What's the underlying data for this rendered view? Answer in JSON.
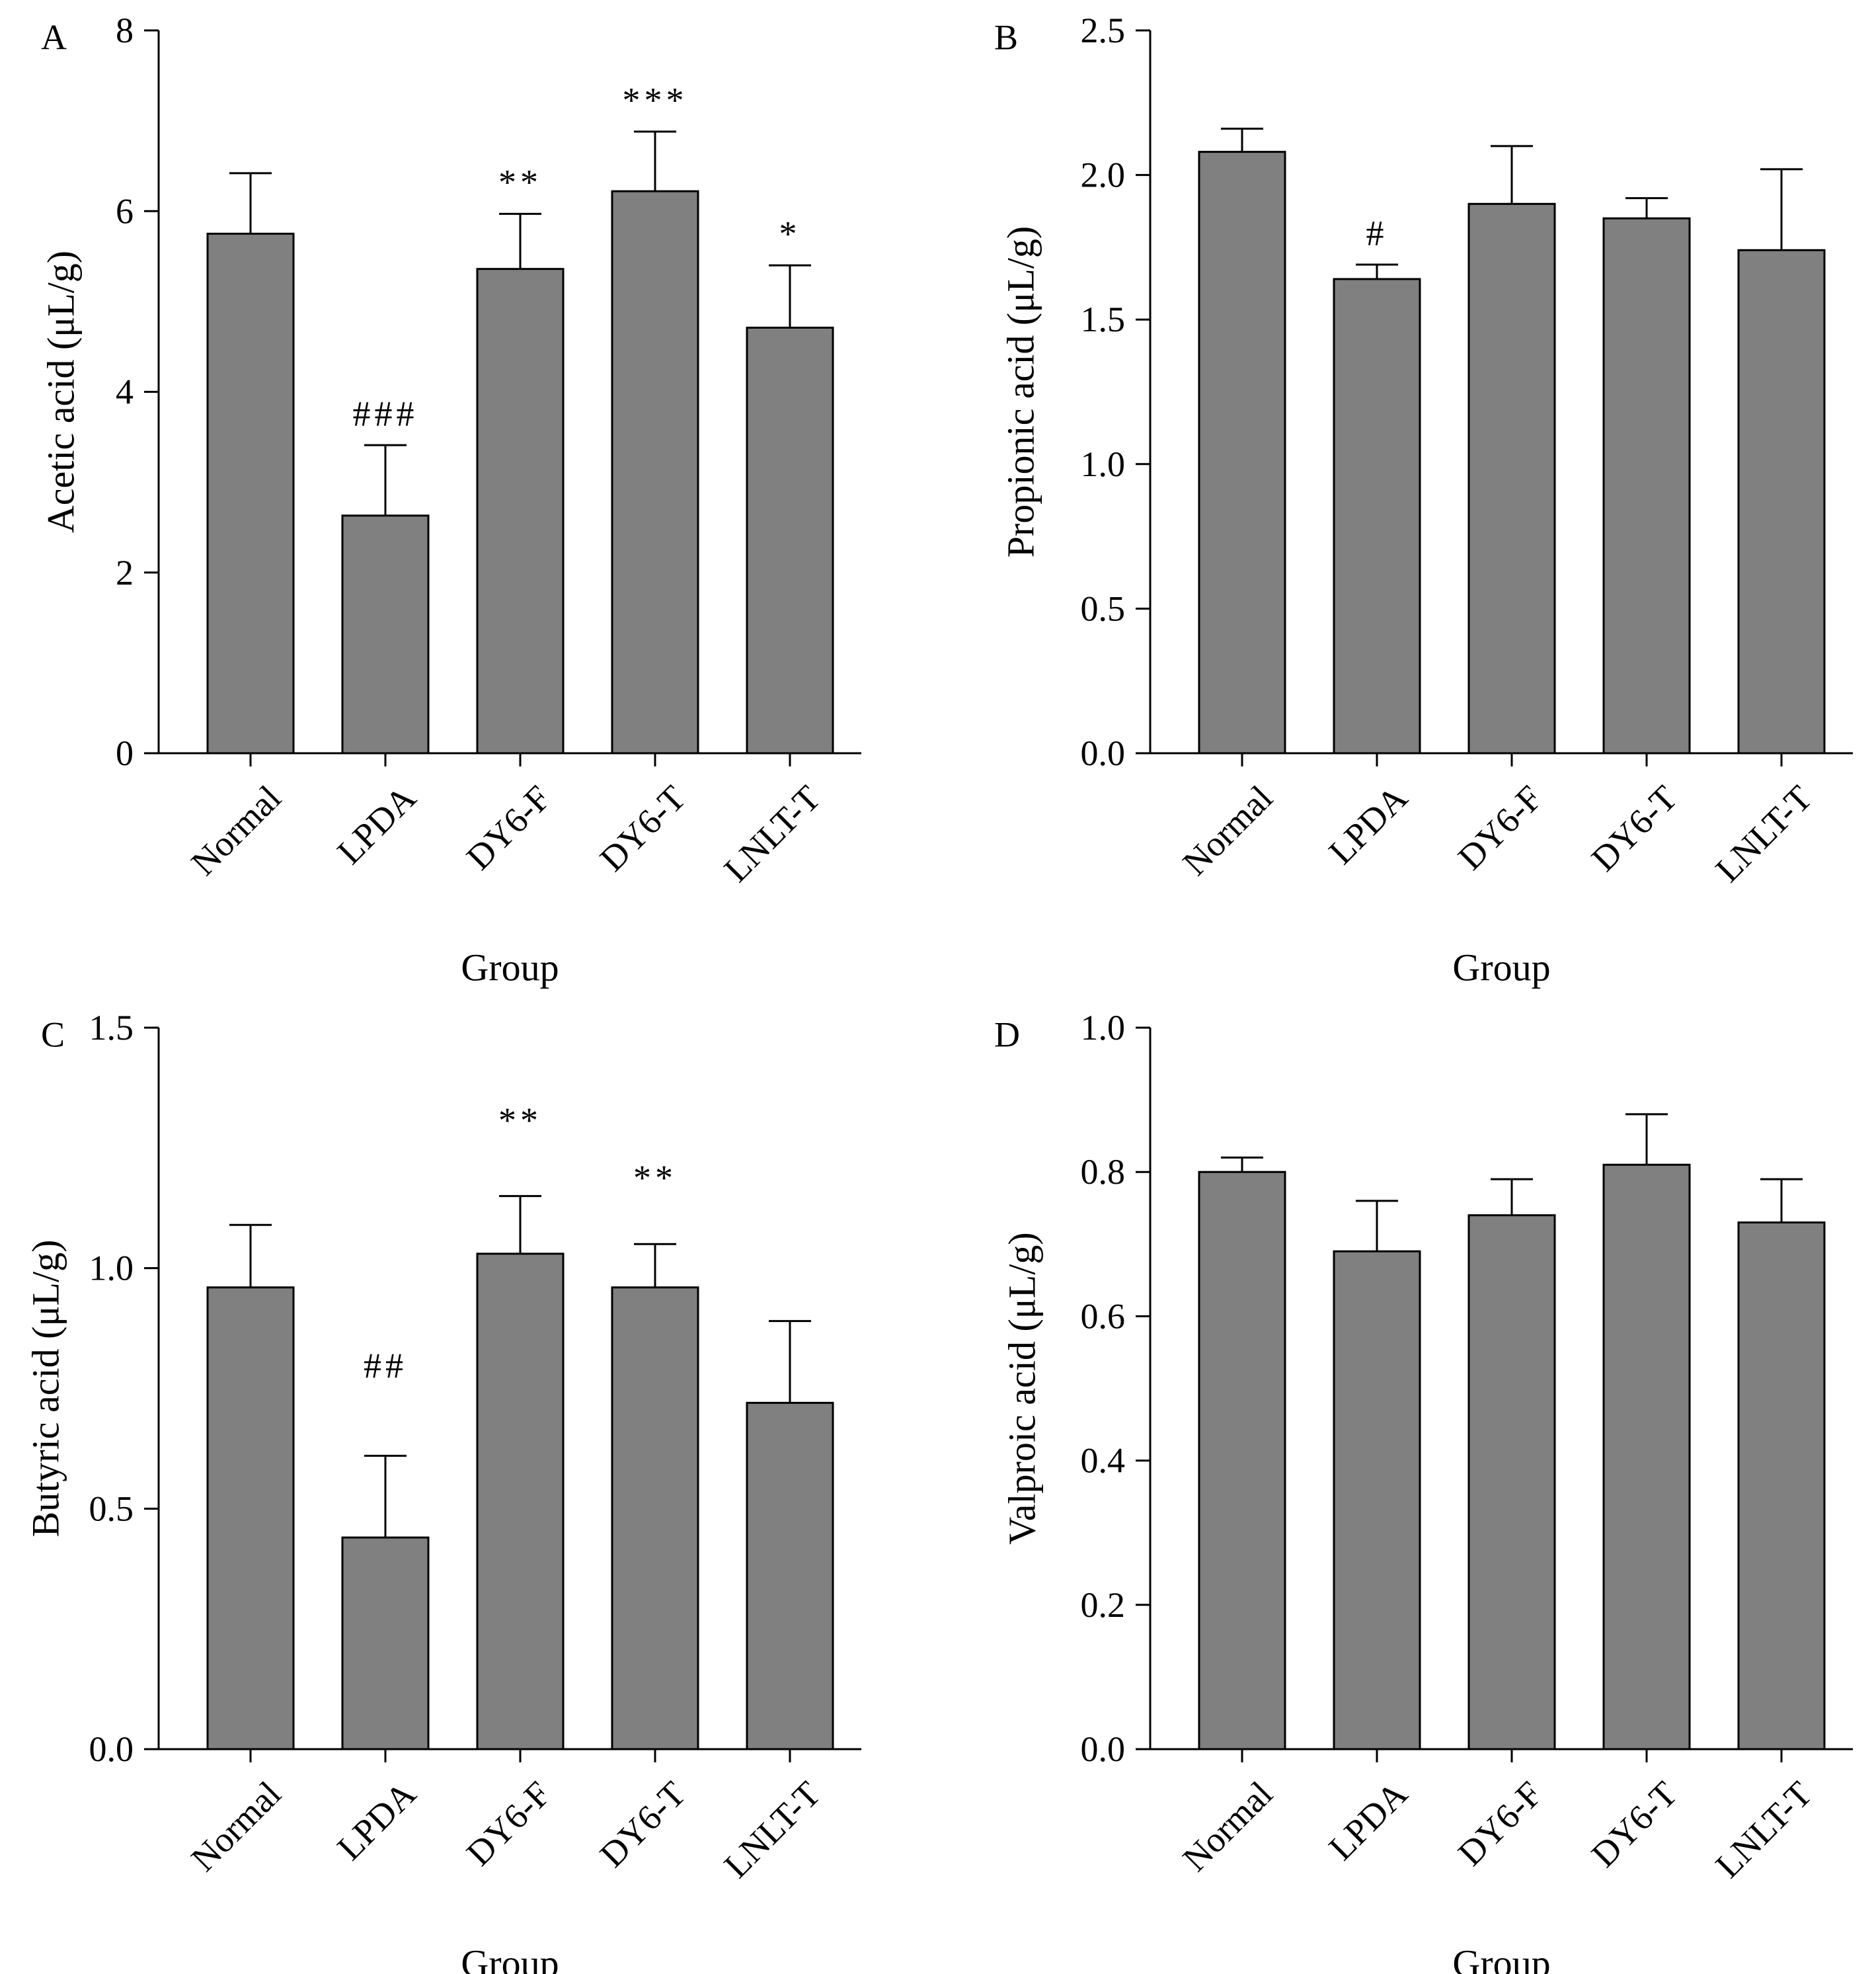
{
  "chart_data": [
    {
      "panel": "A",
      "type": "bar",
      "categories": [
        "Normal",
        "LPDA",
        "DY6-F",
        "DY6-T",
        "LNLT-T"
      ],
      "values": [
        5.75,
        2.63,
        5.36,
        6.22,
        4.71
      ],
      "errors": [
        0.67,
        0.78,
        0.61,
        0.66,
        0.69
      ],
      "significance": [
        "",
        "###",
        "**",
        "***",
        "*"
      ],
      "xlabel": "Group",
      "ylabel": "Acetic acid (μL/g)",
      "ylim": [
        0,
        8
      ],
      "yticks": [
        0,
        2,
        4,
        6,
        8
      ],
      "ytick_labels": [
        "0",
        "2",
        "4",
        "6",
        "8"
      ]
    },
    {
      "panel": "B",
      "type": "bar",
      "categories": [
        "Normal",
        "LPDA",
        "DY6-F",
        "DY6-T",
        "LNLT-T"
      ],
      "values": [
        2.08,
        1.64,
        1.9,
        1.85,
        1.74
      ],
      "errors": [
        0.08,
        0.05,
        0.2,
        0.07,
        0.28
      ],
      "significance": [
        "",
        "#",
        "",
        "",
        ""
      ],
      "xlabel": "Group",
      "ylabel": "Propionic acid (μL/g)",
      "ylim": [
        0,
        2.5
      ],
      "yticks": [
        0,
        0.5,
        1,
        1.5,
        2,
        2.5
      ],
      "ytick_labels": [
        "0.0",
        "0.5",
        "1.0",
        "1.5",
        "2.0",
        "2.5"
      ]
    },
    {
      "panel": "C",
      "type": "bar",
      "categories": [
        "Normal",
        "LPDA",
        "DY6-F",
        "DY6-T",
        "LNLT-T"
      ],
      "values": [
        0.96,
        0.44,
        1.03,
        0.96,
        0.72
      ],
      "errors": [
        0.13,
        0.17,
        0.12,
        0.09,
        0.17
      ],
      "significance": [
        "",
        "##",
        "**",
        "**",
        ""
      ],
      "sig_values": [
        null,
        0.79,
        1.3,
        1.18,
        null
      ],
      "xlabel": "Group",
      "ylabel": "Butyric acid (μL/g)",
      "ylim": [
        0,
        1.5
      ],
      "yticks": [
        0,
        0.5,
        1,
        1.5
      ],
      "ytick_labels": [
        "0.0",
        "0.5",
        "1.0",
        "1.5"
      ]
    },
    {
      "panel": "D",
      "type": "bar",
      "categories": [
        "Normal",
        "LPDA",
        "DY6-F",
        "DY6-T",
        "LNLT-T"
      ],
      "values": [
        0.8,
        0.69,
        0.74,
        0.81,
        0.73
      ],
      "errors": [
        0.02,
        0.07,
        0.05,
        0.07,
        0.06
      ],
      "significance": [
        "",
        "",
        "",
        "",
        ""
      ],
      "xlabel": "Group",
      "ylabel": "Valproic acid (μL/g)",
      "ylim": [
        0,
        1
      ],
      "yticks": [
        0,
        0.2,
        0.4,
        0.6,
        0.8,
        1
      ],
      "ytick_labels": [
        "0.0",
        "0.2",
        "0.4",
        "0.6",
        "0.8",
        "1.0"
      ]
    }
  ]
}
